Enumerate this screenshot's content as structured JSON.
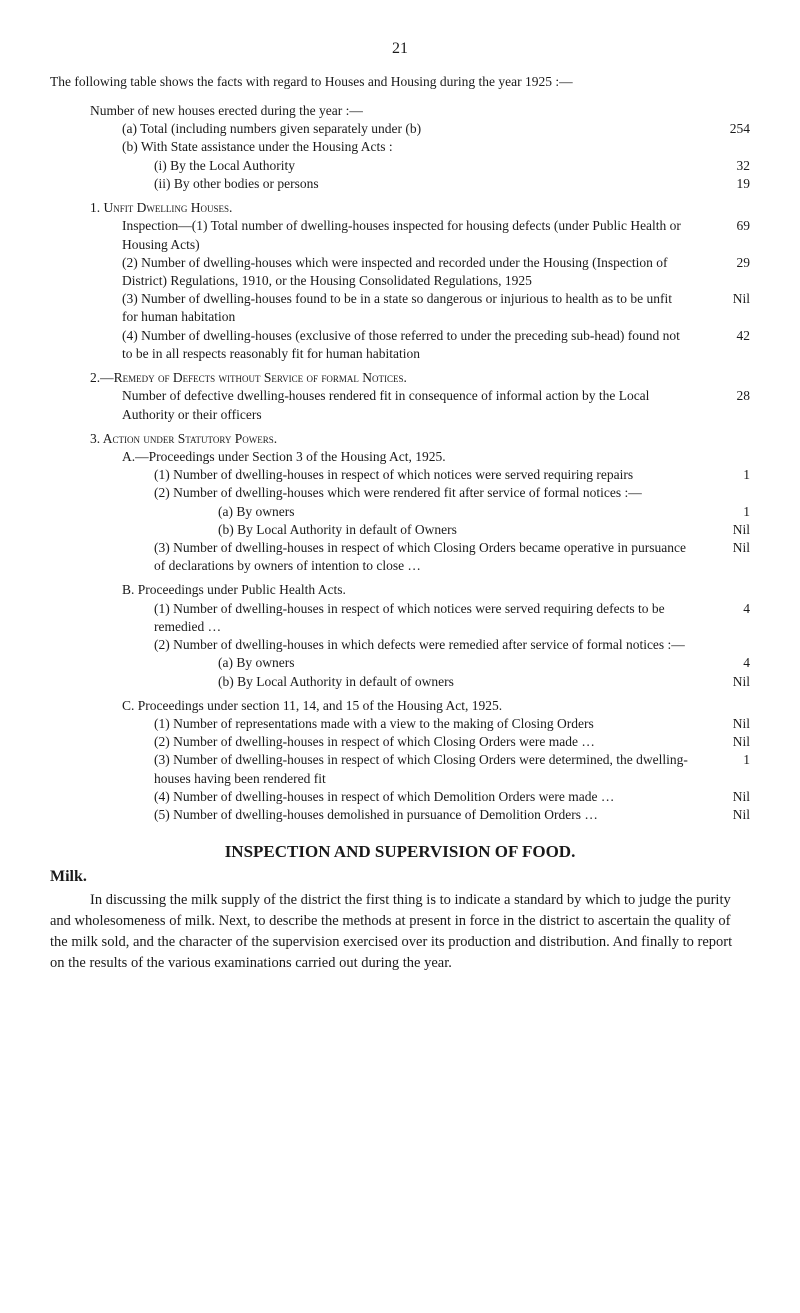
{
  "page_number": "21",
  "intro": "The following table shows the facts with regard to Houses and Housing during the year 1925 :—",
  "lines": [
    {
      "cls": "indent-1 gap-t",
      "label": "Number of new houses erected during the year :—",
      "val": ""
    },
    {
      "cls": "indent-2",
      "label": "(a) Total (including numbers given separately under (b)",
      "val": "254"
    },
    {
      "cls": "indent-2",
      "label": "(b) With State assistance under the Housing Acts :",
      "val": ""
    },
    {
      "cls": "indent-3",
      "label": "(i) By the Local Authority",
      "val": "32"
    },
    {
      "cls": "indent-3",
      "label": "(ii) By other bodies or persons",
      "val": "19"
    },
    {
      "cls": "indent-1 gap-t",
      "label": "1.  Unfit Dwelling Houses.",
      "val": "",
      "sc": true
    },
    {
      "cls": "indent-2",
      "label": "Inspection—(1) Total number of dwelling-houses inspected for housing defects (under Public Health or Housing Acts)",
      "val": "69"
    },
    {
      "cls": "indent-2",
      "label": "(2) Number of dwelling-houses which were inspected and recorded under the Housing (Inspection of District) Regulations, 1910, or the Housing Consolidated Regulations, 1925",
      "val": "29"
    },
    {
      "cls": "indent-2",
      "label": "(3) Number of dwelling-houses found to be in a state so dangerous or injurious to health as to be unfit for human habitation",
      "val": "Nil"
    },
    {
      "cls": "indent-2",
      "label": "(4) Number of dwelling-houses (exclusive of those referred to under the preceding sub-head) found not to be in all respects reasonably fit for human habitation",
      "val": "42"
    },
    {
      "cls": "indent-1 gap-t",
      "label": "2.—Remedy of Defects without Service of formal Notices.",
      "val": "",
      "sc": true
    },
    {
      "cls": "indent-2",
      "label": "Number of defective dwelling-houses rendered fit in consequence of informal action by the Local Authority or their officers",
      "val": "28"
    },
    {
      "cls": "indent-1 gap-t",
      "label": "3.  Action under Statutory Powers.",
      "val": "",
      "sc": true
    },
    {
      "cls": "indent-2",
      "label": "A.—Proceedings under Section 3 of the Housing Act, 1925.",
      "val": ""
    },
    {
      "cls": "indent-3",
      "label": "(1) Number of dwelling-houses in respect of which notices were served requiring repairs",
      "val": "1"
    },
    {
      "cls": "indent-3",
      "label": "(2) Number of dwelling-houses which were rendered fit after service of formal notices :—",
      "val": ""
    },
    {
      "cls": "indent-5",
      "label": "(a) By owners",
      "val": "1"
    },
    {
      "cls": "indent-5",
      "label": "(b) By Local Authority in default of Owners",
      "val": "Nil"
    },
    {
      "cls": "indent-3",
      "label": "(3) Number of dwelling-houses in respect of which Closing Orders became operative in pursuance of declarations by owners of intention to close …",
      "val": "Nil"
    },
    {
      "cls": "indent-2 gap-t",
      "label": "B.  Proceedings under Public Health Acts.",
      "val": ""
    },
    {
      "cls": "indent-3",
      "label": "(1) Number of dwelling-houses in respect of which notices were served requiring defects to be remedied …",
      "val": "4"
    },
    {
      "cls": "indent-3",
      "label": "(2) Number of dwelling-houses in which defects were remedied after service of formal notices :—",
      "val": ""
    },
    {
      "cls": "indent-5",
      "label": "(a) By owners",
      "val": "4"
    },
    {
      "cls": "indent-5",
      "label": "(b) By Local Authority in default of owners",
      "val": "Nil"
    },
    {
      "cls": "indent-2 gap-t",
      "label": "C.  Proceedings under section 11, 14, and 15 of the Housing Act, 1925.",
      "val": ""
    },
    {
      "cls": "indent-3",
      "label": "(1) Number of representations made with a view to the making of Closing Orders",
      "val": "Nil"
    },
    {
      "cls": "indent-3",
      "label": "(2) Number of dwelling-houses in respect of which Closing Orders were made …",
      "val": "Nil"
    },
    {
      "cls": "indent-3",
      "label": "(3) Number of dwelling-houses in respect of which Closing Orders were determined, the dwelling-houses having been rendered fit",
      "val": "1"
    },
    {
      "cls": "indent-3",
      "label": "(4) Number of dwelling-houses in respect of which Demolition Orders were made …",
      "val": "Nil"
    },
    {
      "cls": "indent-3",
      "label": "(5) Number of dwelling-houses demolished in pursuance of Demolition Orders …",
      "val": "Nil"
    }
  ],
  "sec_heading": "INSPECTION AND SUPERVISION OF FOOD.",
  "milk": "Milk.",
  "para": "In discussing the milk supply of the district the first thing is to indicate a standard by which to judge the purity and wholesomeness of milk. Next, to describe the methods at present in force in the district to ascertain the quality of the milk sold, and the character of the supervision exercised over its production and distribution. And finally to report on the results of the various examinations carried out during the year."
}
